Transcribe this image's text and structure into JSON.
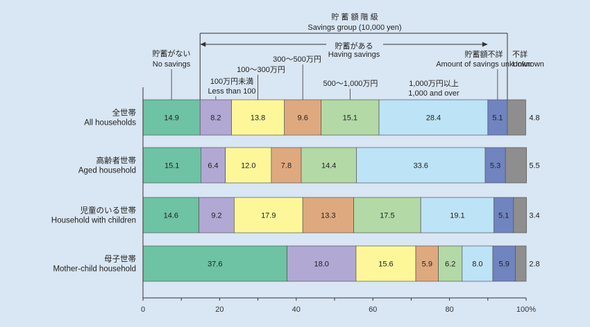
{
  "chart_data": {
    "type": "bar",
    "orientation": "horizontal",
    "stacked": true,
    "title_ja": "貯 蓄 額 階 級",
    "title_en": "Savings group (10,000 yen)",
    "having_savings_ja": "貯蓄がある",
    "having_savings_en": "Having savings",
    "categories": [
      {
        "ja": "全世帯",
        "en": "All households"
      },
      {
        "ja": "高齢者世帯",
        "en": "Aged household"
      },
      {
        "ja": "児童のいる世帯",
        "en": "Household with children"
      },
      {
        "ja": "母子世帯",
        "en": "Mother-child household"
      }
    ],
    "series": [
      {
        "name_ja": "貯蓄がない",
        "name_en": "No savings",
        "color": "#6dc3a4",
        "values": [
          14.9,
          15.1,
          14.6,
          37.6
        ],
        "labels": [
          "14.9",
          "15.1",
          "14.6",
          "37.6"
        ]
      },
      {
        "name_ja": "100万円未満",
        "name_en": "Less than 100",
        "color": "#b1a8d4",
        "values": [
          8.2,
          6.4,
          9.2,
          18.0
        ],
        "labels": [
          "8.2",
          "6.4",
          "9.2",
          "18.0"
        ]
      },
      {
        "name_ja": "100～300万円",
        "name_en": "",
        "color": "#fdf79a",
        "values": [
          13.8,
          12.0,
          17.9,
          15.6
        ],
        "labels": [
          "13.8",
          "12.0",
          "17.9",
          "15.6"
        ]
      },
      {
        "name_ja": "300～500万円",
        "name_en": "",
        "color": "#dfa97f",
        "values": [
          9.6,
          7.8,
          13.3,
          5.9
        ],
        "labels": [
          "9.6",
          "7.8",
          "13.3",
          "5.9"
        ]
      },
      {
        "name_ja": "500～1,000万円",
        "name_en": "",
        "color": "#b2d9a6",
        "values": [
          15.1,
          14.4,
          17.5,
          6.2
        ],
        "labels": [
          "15.1",
          "14.4",
          "17.5",
          "6.2"
        ]
      },
      {
        "name_ja": "1,000万円以上",
        "name_en": "1,000 and over",
        "color": "#bde3f6",
        "values": [
          28.4,
          33.6,
          19.1,
          8.0
        ],
        "labels": [
          "28.4",
          "33.6",
          "19.1",
          "8.0"
        ]
      },
      {
        "name_ja": "貯蓄額不詳",
        "name_en": "Amount of savings unknown",
        "color": "#7084c0",
        "values": [
          5.1,
          5.3,
          5.1,
          5.9
        ],
        "labels": [
          "5.1",
          "5.3",
          "5.1",
          "5.9"
        ]
      },
      {
        "name_ja": "不詳",
        "name_en": "Unknown",
        "color": "#8e8e8e",
        "values": [
          4.8,
          5.5,
          3.4,
          2.8
        ],
        "labels": [
          "4.8",
          "5.5",
          "3.4",
          "2.8"
        ]
      }
    ],
    "xlim": [
      0,
      100
    ],
    "xticks": [
      0,
      20,
      40,
      60,
      80,
      100
    ],
    "xtick_labels": [
      "0",
      "20",
      "40",
      "60",
      "80",
      "100%"
    ],
    "grid": false,
    "legend": "labels-above-bars"
  },
  "colors": {
    "background": "#d9e6f3",
    "axis": "#333333"
  }
}
